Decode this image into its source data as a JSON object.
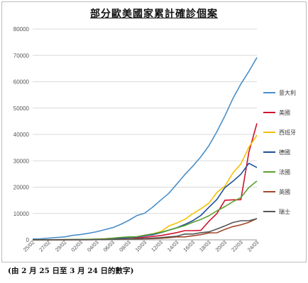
{
  "caption": "(由 2 月 25 日至 3 月 24 日的數字)",
  "chart_data": {
    "type": "line",
    "title": "部分歐美國家累計確診個案",
    "ylim": [
      0,
      80000
    ],
    "yticks": [
      0,
      10000,
      20000,
      30000,
      40000,
      50000,
      60000,
      70000,
      80000
    ],
    "grid": "horizontal",
    "legend_position": "right",
    "x": [
      "25/02",
      "26/02",
      "27/02",
      "28/02",
      "29/02",
      "01/03",
      "02/03",
      "03/03",
      "04/03",
      "05/03",
      "06/03",
      "07/03",
      "08/03",
      "09/03",
      "10/03",
      "11/03",
      "12/03",
      "13/03",
      "14/03",
      "15/03",
      "16/03",
      "17/03",
      "18/03",
      "19/03",
      "20/03",
      "21/03",
      "22/03",
      "23/03",
      "24/03"
    ],
    "xtick_labels": [
      "25/02",
      "27/02",
      "29/02",
      "02/03",
      "04/03",
      "06/03",
      "08/03",
      "10/03",
      "12/03",
      "14/03",
      "16/03",
      "18/03",
      "20/03",
      "22/03",
      "24/03"
    ],
    "series": [
      {
        "name": "意大利",
        "color": "#4a8fc9",
        "values": [
          322,
          400,
          650,
          888,
          1128,
          1694,
          2036,
          2502,
          3089,
          3858,
          4636,
          5883,
          7375,
          9172,
          10149,
          12462,
          15113,
          17660,
          21157,
          24747,
          27980,
          31506,
          35713,
          41035,
          47021,
          53578,
          59138,
          63927,
          69176
        ]
      },
      {
        "name": "美國",
        "color": "#d0112b",
        "values": [
          53,
          57,
          60,
          62,
          68,
          75,
          100,
          124,
          158,
          221,
          319,
          435,
          541,
          704,
          994,
          1301,
          1630,
          2183,
          2726,
          3499,
          3500,
          3600,
          7000,
          10000,
          15000,
          15200,
          15219,
          33276,
          44183
        ]
      },
      {
        "name": "西班牙",
        "color": "#f5c000",
        "values": [
          6,
          13,
          15,
          32,
          45,
          84,
          120,
          165,
          222,
          259,
          400,
          500,
          673,
          1073,
          1695,
          2277,
          3146,
          5232,
          6391,
          7798,
          9942,
          11748,
          13910,
          17963,
          20410,
          25374,
          28768,
          35136,
          39673
        ]
      },
      {
        "name": "德國",
        "color": "#1f4e9a",
        "values": [
          18,
          21,
          26,
          53,
          66,
          117,
          150,
          188,
          240,
          349,
          534,
          684,
          847,
          1112,
          1565,
          1966,
          2745,
          3675,
          4599,
          5813,
          7272,
          9257,
          12327,
          15320,
          19848,
          22213,
          24873,
          29056,
          27436
        ]
      },
      {
        "name": "法國",
        "color": "#5aa12f",
        "values": [
          14,
          18,
          38,
          57,
          100,
          130,
          191,
          212,
          285,
          423,
          653,
          949,
          1126,
          1209,
          1784,
          2281,
          2876,
          3661,
          4499,
          5423,
          6633,
          7730,
          9134,
          10995,
          12612,
          14459,
          16018,
          19856,
          22302
        ]
      },
      {
        "name": "英國",
        "color": "#a0482a",
        "values": [
          13,
          13,
          15,
          20,
          23,
          36,
          40,
          51,
          85,
          115,
          163,
          206,
          273,
          321,
          382,
          456,
          590,
          798,
          1140,
          1140,
          1543,
          1950,
          2626,
          2690,
          3983,
          5018,
          5683,
          6650,
          8077
        ]
      },
      {
        "name": "瑞士",
        "color": "#555555",
        "values": [
          1,
          8,
          8,
          18,
          18,
          27,
          42,
          56,
          90,
          114,
          214,
          268,
          337,
          374,
          491,
          652,
          858,
          1125,
          1359,
          2200,
          2200,
          2700,
          3028,
          4075,
          5294,
          6575,
          7245,
          7245,
          8060
        ]
      }
    ]
  }
}
